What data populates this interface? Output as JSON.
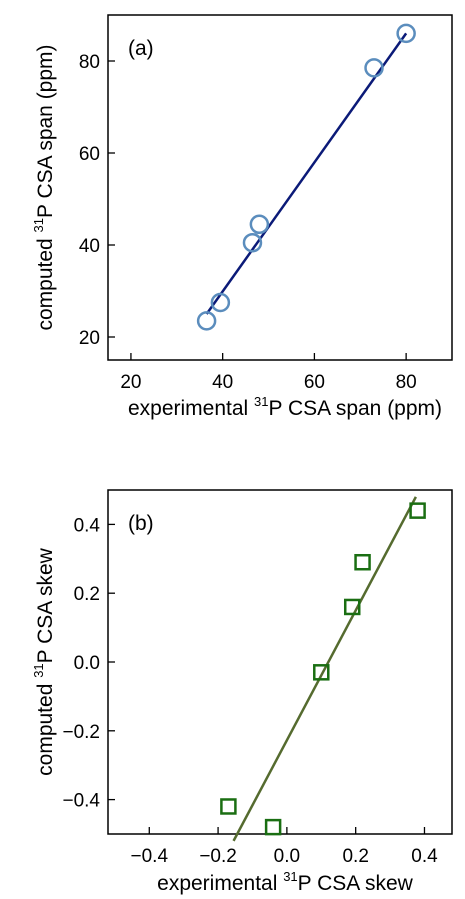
{
  "chart_data": [
    {
      "type": "scatter",
      "panel_label": "(a)",
      "xlabel": {
        "prefix": "experimental ",
        "sup": "31",
        "suffix": "P CSA span (ppm)"
      },
      "ylabel": {
        "prefix": "computed ",
        "sup": "31",
        "suffix": "P CSA span (ppm)"
      },
      "xlim": [
        15,
        90
      ],
      "ylim": [
        15,
        90
      ],
      "xticks": [
        20,
        40,
        60,
        80
      ],
      "yticks": [
        20,
        40,
        60,
        80
      ],
      "marker": "circle",
      "marker_color": "#5b8dbd",
      "line_color": "#0b1a78",
      "points": [
        {
          "x": 36.5,
          "y": 23.5
        },
        {
          "x": 39.5,
          "y": 27.5
        },
        {
          "x": 46.5,
          "y": 40.5
        },
        {
          "x": 48.0,
          "y": 44.5
        },
        {
          "x": 73.0,
          "y": 78.5
        },
        {
          "x": 80.0,
          "y": 86.0
        }
      ],
      "fit_line": [
        {
          "x": 36.5,
          "y": 25.0
        },
        {
          "x": 80.0,
          "y": 86.0
        }
      ],
      "grid": false
    },
    {
      "type": "scatter",
      "panel_label": "(b)",
      "xlabel": {
        "prefix": "experimental ",
        "sup": "31",
        "suffix": "P CSA skew"
      },
      "ylabel": {
        "prefix": "computed ",
        "sup": "31",
        "suffix": "P CSA skew"
      },
      "xlim": [
        -0.52,
        0.48
      ],
      "ylim": [
        -0.5,
        0.5
      ],
      "xticks": [
        -0.4,
        -0.2,
        0.0,
        0.2,
        0.4
      ],
      "xtick_labels": [
        "−0.4",
        "−0.2",
        "0.0",
        "0.2",
        "0.4"
      ],
      "yticks": [
        0.4,
        0.2,
        0.0,
        -0.2,
        -0.4
      ],
      "ytick_labels": [
        "0.4",
        "0.2",
        "0.0",
        "−0.2",
        "−0.4"
      ],
      "marker": "square",
      "marker_color": "#1a6e12",
      "line_color": "#556b2f",
      "points": [
        {
          "x": -0.17,
          "y": -0.42
        },
        {
          "x": -0.04,
          "y": -0.48
        },
        {
          "x": 0.1,
          "y": -0.03
        },
        {
          "x": 0.19,
          "y": 0.16
        },
        {
          "x": 0.22,
          "y": 0.29
        },
        {
          "x": 0.38,
          "y": 0.44
        }
      ],
      "fit_line": [
        {
          "x": -0.155,
          "y": -0.52
        },
        {
          "x": 0.375,
          "y": 0.48
        }
      ],
      "grid": false
    }
  ]
}
